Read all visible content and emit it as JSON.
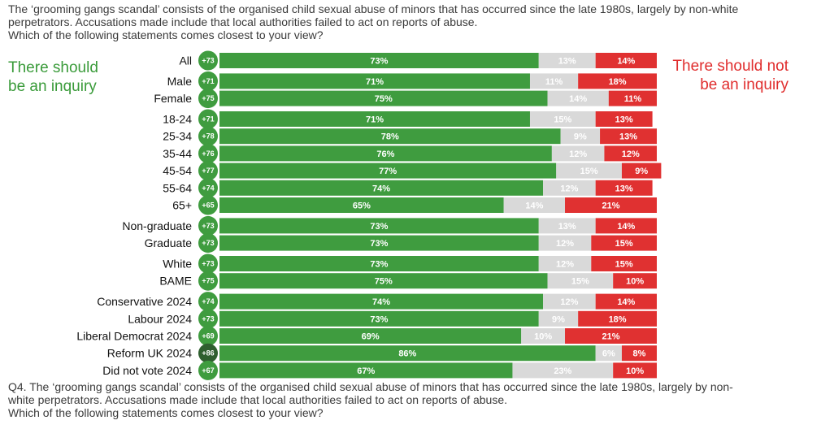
{
  "intro": {
    "line1": "The ‘grooming gangs scandal’ consists of the organised child sexual abuse of minors that has occurred since the late 1980s, largely by non-white",
    "line2": "perpetrators. Accusations made include that local authorities failed to act on reports of abuse.",
    "line3": "Which of the following statements comes closest to your view?"
  },
  "footer": {
    "line1": "Q4. The ‘grooming gangs scandal’ consists of the organised child sexual abuse of minors that has occurred since the late 1980s, largely by non-",
    "line2": "white perpetrators. Accusations made include that local authorities failed to act on reports of abuse.",
    "line3": "Which of the following statements comes closest to your view?"
  },
  "legend": {
    "left_line1": "There should",
    "left_line2": "be an inquiry",
    "right_line1": "There should not",
    "right_line2": "be an inquiry"
  },
  "colors": {
    "inquiry": "#3f9c3f",
    "neutral": "#d9d9d9",
    "no_inquiry": "#e03131",
    "net_circle": "#3f9c3f",
    "net_circle_highlight": "#2f5f2f"
  },
  "chart_data": {
    "type": "bar",
    "orientation": "horizontal",
    "stacked": true,
    "xlim": [
      0,
      100
    ],
    "unit": "%",
    "series": [
      {
        "name": "There should be an inquiry",
        "values": [
          73,
          71,
          75,
          71,
          78,
          76,
          77,
          74,
          65,
          73,
          73,
          73,
          75,
          74,
          73,
          69,
          86,
          67
        ]
      },
      {
        "name": "",
        "values": [
          13,
          11,
          14,
          15,
          9,
          12,
          15,
          12,
          14,
          13,
          12,
          12,
          15,
          12,
          9,
          10,
          6,
          23
        ]
      },
      {
        "name": "There should not be an inquiry",
        "values": [
          14,
          18,
          11,
          13,
          13,
          12,
          9,
          13,
          21,
          14,
          15,
          15,
          10,
          14,
          18,
          21,
          8,
          10
        ]
      }
    ],
    "categories": [
      "All",
      "Male",
      "Female",
      "18-24",
      "25-34",
      "35-44",
      "45-54",
      "55-64",
      "65+",
      "Non-graduate",
      "Graduate",
      "White",
      "BAME",
      "Conservative 2024",
      "Labour 2024",
      "Liberal Democrat 2024",
      "Reform UK 2024",
      "Did not vote 2024"
    ],
    "net_labels": [
      "+73",
      "+71",
      "+75",
      "+71",
      "+78",
      "+76",
      "+77",
      "+74",
      "+65",
      "+73",
      "+73",
      "+73",
      "+75",
      "+74",
      "+73",
      "+69",
      "+86",
      "+67"
    ],
    "highlight_index": 16,
    "group_breaks_after": [
      0,
      2,
      8,
      10,
      12
    ]
  }
}
